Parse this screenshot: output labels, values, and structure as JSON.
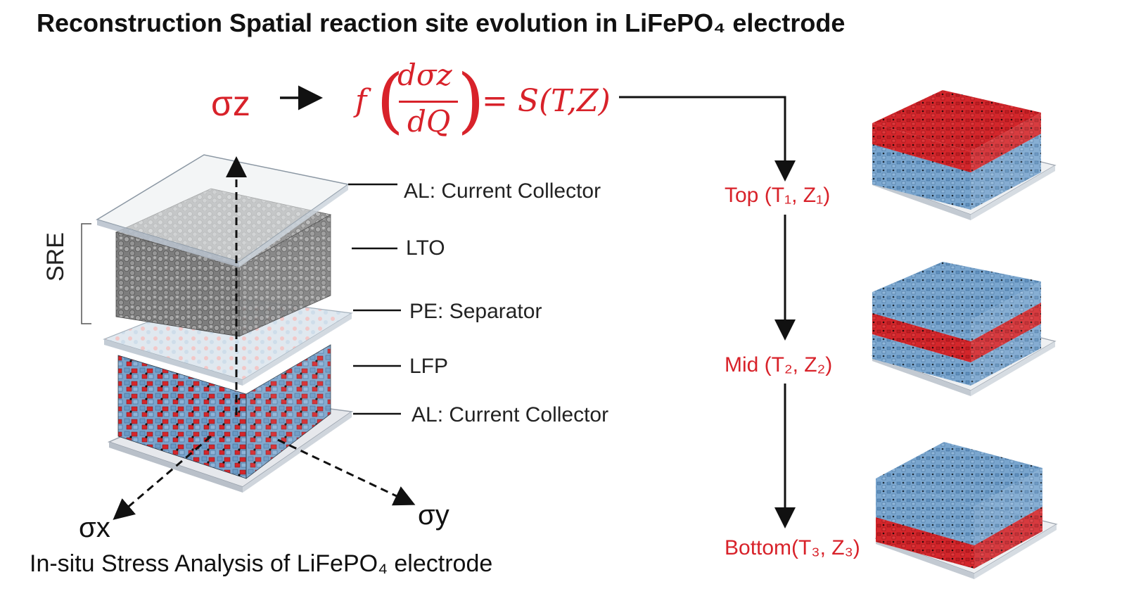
{
  "title": "Reconstruction Spatial reaction site evolution in LiFePO₄ electrode",
  "formula": {
    "sigma_label": "σz",
    "function": "f",
    "numerator": "dσz",
    "denominator": "dQ",
    "rhs": "= S(T,Z)"
  },
  "layers": [
    "AL: Current Collector",
    "LTO",
    "PE: Separator",
    "LFP",
    "AL: Current Collector"
  ],
  "bracket_label": "SRE",
  "axes": {
    "x": "σx",
    "y": "σy"
  },
  "caption": "In-situ Stress Analysis of LiFePO₄ electrode",
  "stages": [
    {
      "label": "Top (T₁, Z₁)"
    },
    {
      "label": "Mid (T₂, Z₂)"
    },
    {
      "label": "Bottom(T₃, Z₃)"
    }
  ],
  "colors": {
    "accent_red": "#d8222a",
    "particle_blue": "#6a9ac6",
    "particle_red": "#d4262b",
    "particle_gray": "#8c8c8c",
    "collector_plate": "#e6e8ec"
  }
}
